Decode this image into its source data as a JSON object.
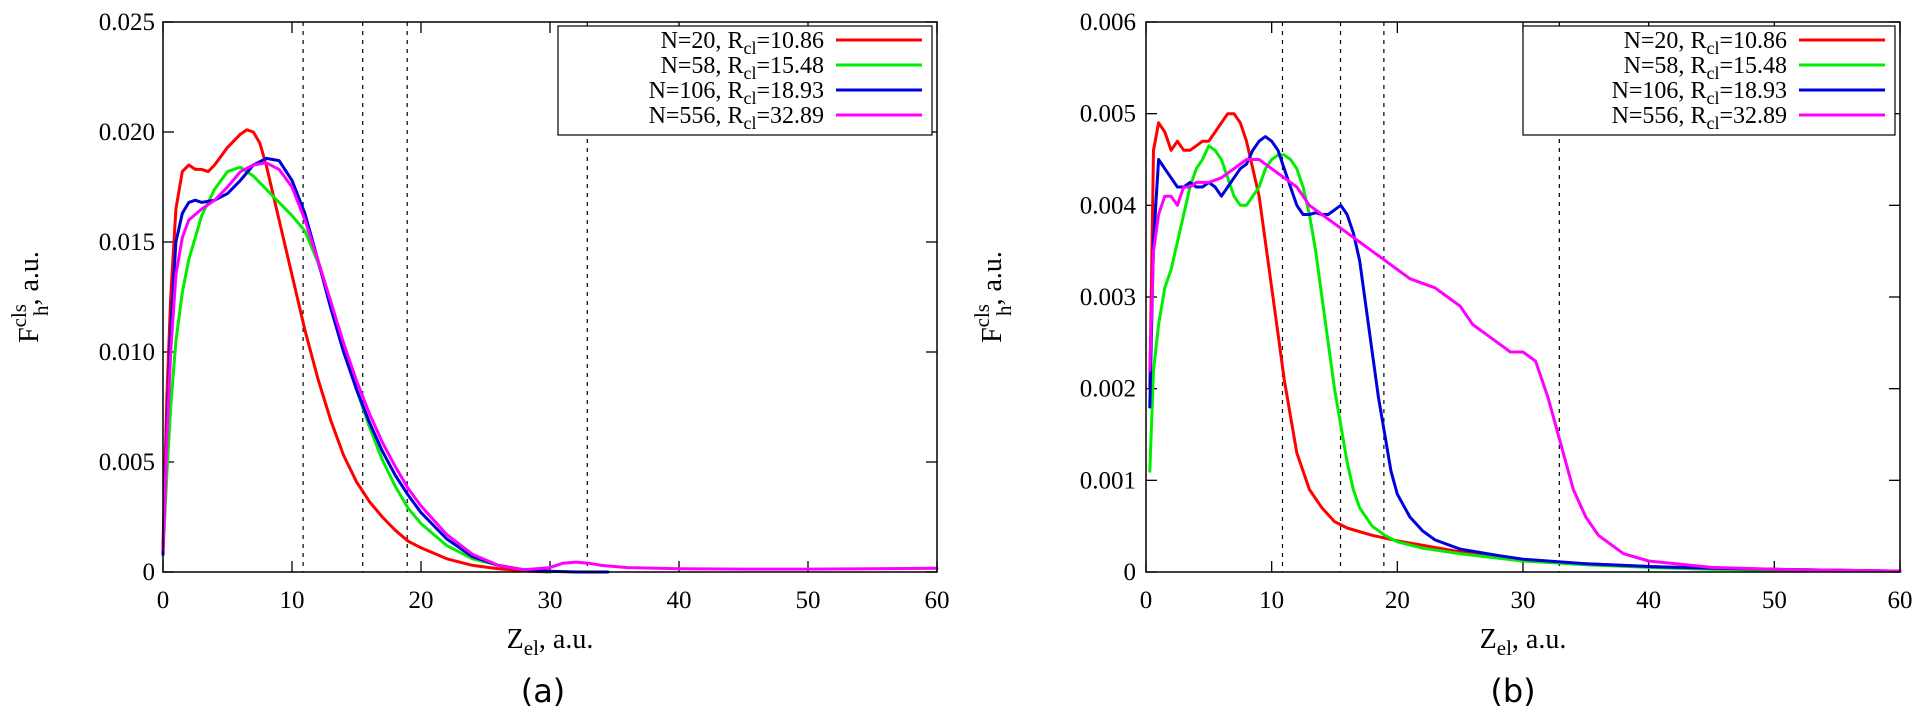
{
  "chart_data": [
    {
      "type": "line",
      "panel_label": "(a)",
      "xlabel": {
        "main": "Z",
        "sub": "el",
        "rest": ", a.u."
      },
      "ylabel": {
        "main": "F",
        "sup": "cls",
        "sub": "h",
        "rest": ", a.u."
      },
      "xlim": [
        0,
        60
      ],
      "ylim": [
        0,
        0.025
      ],
      "xticks": [
        0,
        10,
        20,
        30,
        40,
        50,
        60
      ],
      "xtick_labels": [
        "0",
        "10",
        "20",
        "30",
        "40",
        "50",
        "60"
      ],
      "yticks": [
        0,
        0.005,
        0.01,
        0.015,
        0.02,
        0.025
      ],
      "ytick_labels": [
        "0",
        "0.005",
        "0.010",
        "0.015",
        "0.020",
        "0.025"
      ],
      "vlines": [
        10.86,
        15.48,
        18.93,
        32.89
      ],
      "legend_position": "top-right",
      "series": [
        {
          "name": "N=20",
          "rcl": "R",
          "rcl_sub": "cl",
          "rcl_value": "=10.86",
          "color": "#ff0000",
          "x": [
            0,
            0.3,
            0.6,
            1,
            1.5,
            2,
            2.5,
            3,
            3.5,
            4,
            5,
            6,
            6.5,
            7,
            7.5,
            8,
            9,
            10,
            11,
            12,
            13,
            14,
            15,
            16,
            17,
            18,
            19,
            20,
            22,
            24,
            26,
            28,
            30
          ],
          "y": [
            0.0012,
            0.008,
            0.0125,
            0.0165,
            0.0182,
            0.0185,
            0.0183,
            0.0183,
            0.0182,
            0.0185,
            0.0193,
            0.0199,
            0.0201,
            0.02,
            0.0195,
            0.0185,
            0.016,
            0.0135,
            0.011,
            0.0088,
            0.0069,
            0.0053,
            0.0041,
            0.0032,
            0.0025,
            0.0019,
            0.0014,
            0.0011,
            0.0006,
            0.0003,
            0.00015,
            5e-05,
            0
          ]
        },
        {
          "name": "N=58",
          "rcl": "R",
          "rcl_sub": "cl",
          "rcl_value": "=15.48",
          "color": "#00ee00",
          "x": [
            0,
            0.3,
            0.6,
            1,
            1.5,
            2,
            3,
            4,
            5,
            6,
            7,
            8,
            9,
            10,
            11,
            12,
            13,
            14,
            15,
            16,
            17,
            18,
            19,
            20,
            22,
            24,
            26,
            28,
            30
          ],
          "y": [
            0.0009,
            0.0045,
            0.0075,
            0.0105,
            0.0127,
            0.0142,
            0.0162,
            0.0174,
            0.0182,
            0.0184,
            0.018,
            0.0174,
            0.0168,
            0.0162,
            0.0155,
            0.0141,
            0.0123,
            0.0103,
            0.0083,
            0.0066,
            0.0051,
            0.0039,
            0.0029,
            0.0022,
            0.0012,
            0.0006,
            0.0003,
            0.0001,
            0
          ]
        },
        {
          "name": "N=106",
          "rcl": "R",
          "rcl_sub": "cl",
          "rcl_value": "=18.93",
          "color": "#0000dd",
          "x": [
            0,
            0.3,
            0.6,
            1,
            1.5,
            2,
            2.5,
            3,
            4,
            5,
            6,
            7,
            8,
            9,
            10,
            11,
            12,
            13,
            14,
            15,
            16,
            17,
            18,
            19,
            20,
            22,
            24,
            26,
            28,
            30,
            32,
            34.5
          ],
          "y": [
            0.0008,
            0.0065,
            0.011,
            0.015,
            0.0163,
            0.0168,
            0.0169,
            0.0168,
            0.0169,
            0.0172,
            0.0178,
            0.0185,
            0.0188,
            0.0187,
            0.0178,
            0.0163,
            0.0142,
            0.012,
            0.01,
            0.0083,
            0.0068,
            0.0055,
            0.0044,
            0.0035,
            0.0027,
            0.0015,
            0.0007,
            0.0003,
            0.0001,
            3e-05,
            0,
            0
          ]
        },
        {
          "name": "N=556",
          "rcl": "R",
          "rcl_sub": "cl",
          "rcl_value": "=32.89",
          "color": "#ff00ff",
          "x": [
            0,
            0.3,
            0.6,
            1,
            1.5,
            2,
            3,
            4,
            5,
            6,
            7,
            8,
            9,
            10,
            11,
            12,
            13,
            14,
            15,
            16,
            17,
            18,
            19,
            20,
            22,
            24,
            26,
            28,
            30,
            31,
            32,
            33,
            34,
            36,
            40,
            45,
            50,
            55,
            60
          ],
          "y": [
            0.001,
            0.006,
            0.01,
            0.0135,
            0.0152,
            0.016,
            0.0165,
            0.0169,
            0.0175,
            0.0182,
            0.0185,
            0.0186,
            0.0183,
            0.0175,
            0.016,
            0.0142,
            0.0123,
            0.0104,
            0.0087,
            0.0072,
            0.0059,
            0.0048,
            0.0038,
            0.003,
            0.0017,
            0.0008,
            0.0003,
            0.0001,
            0.0002,
            0.0004,
            0.00045,
            0.0004,
            0.0003,
            0.0002,
            0.00015,
            0.00013,
            0.00013,
            0.00015,
            0.00017
          ]
        }
      ]
    },
    {
      "type": "line",
      "panel_label": "(b)",
      "xlabel": {
        "main": "Z",
        "sub": "el",
        "rest": ", a.u."
      },
      "ylabel": {
        "main": "F",
        "sup": "cls",
        "sub": "h",
        "rest": ", a.u."
      },
      "xlim": [
        0,
        60
      ],
      "ylim": [
        0,
        0.006
      ],
      "xticks": [
        0,
        10,
        20,
        30,
        40,
        50,
        60
      ],
      "xtick_labels": [
        "0",
        "10",
        "20",
        "30",
        "40",
        "50",
        "60"
      ],
      "yticks": [
        0,
        0.001,
        0.002,
        0.003,
        0.004,
        0.005,
        0.006
      ],
      "ytick_labels": [
        "0",
        "0.001",
        "0.002",
        "0.003",
        "0.004",
        "0.005",
        "0.006"
      ],
      "vlines": [
        10.86,
        15.48,
        18.93,
        32.89
      ],
      "legend_position": "top-right",
      "series": [
        {
          "name": "N=20",
          "rcl": "R",
          "rcl_sub": "cl",
          "rcl_value": "=10.86",
          "color": "#ff0000",
          "x": [
            0.3,
            0.6,
            1,
            1.5,
            2,
            2.5,
            3,
            3.5,
            4,
            4.5,
            5,
            5.5,
            6,
            6.5,
            7,
            7.5,
            8,
            8.5,
            9,
            9.5,
            10,
            10.5,
            11,
            11.5,
            12,
            13,
            14,
            15,
            16,
            18,
            20,
            25,
            30,
            35,
            40,
            45,
            50,
            55,
            60
          ],
          "y": [
            0.002,
            0.0046,
            0.0049,
            0.0048,
            0.0046,
            0.0047,
            0.0046,
            0.0046,
            0.00465,
            0.0047,
            0.0047,
            0.0048,
            0.0049,
            0.005,
            0.005,
            0.0049,
            0.0047,
            0.0044,
            0.0041,
            0.0036,
            0.0031,
            0.0026,
            0.0021,
            0.0017,
            0.0013,
            0.0009,
            0.0007,
            0.00055,
            0.00048,
            0.0004,
            0.00034,
            0.00022,
            0.00012,
            9e-05,
            6e-05,
            4e-05,
            3e-05,
            2e-05,
            1e-05
          ]
        },
        {
          "name": "N=58",
          "rcl": "R",
          "rcl_sub": "cl",
          "rcl_value": "=15.48",
          "color": "#00ee00",
          "x": [
            0.3,
            0.6,
            1,
            1.5,
            2,
            2.5,
            3,
            3.5,
            4,
            4.5,
            5,
            5.5,
            6,
            6.5,
            7,
            7.5,
            8,
            8.5,
            9,
            9.5,
            10,
            10.5,
            11,
            11.5,
            12,
            12.5,
            13,
            13.5,
            14,
            14.5,
            15,
            15.5,
            16,
            16.5,
            17,
            18,
            19,
            20,
            22,
            25,
            30,
            35,
            40,
            45,
            50,
            55,
            60
          ],
          "y": [
            0.0011,
            0.0022,
            0.0027,
            0.0031,
            0.0033,
            0.0036,
            0.0039,
            0.0042,
            0.0044,
            0.0045,
            0.00465,
            0.0046,
            0.0045,
            0.0043,
            0.0041,
            0.004,
            0.004,
            0.0041,
            0.0042,
            0.0044,
            0.0045,
            0.00455,
            0.00455,
            0.0045,
            0.0044,
            0.0042,
            0.0039,
            0.0035,
            0.003,
            0.0025,
            0.002,
            0.0016,
            0.0012,
            0.0009,
            0.0007,
            0.0005,
            0.0004,
            0.00033,
            0.00026,
            0.0002,
            0.00012,
            8e-05,
            5e-05,
            3e-05,
            2e-05,
            1e-05,
            1e-05
          ]
        },
        {
          "name": "N=106",
          "rcl": "R",
          "rcl_sub": "cl",
          "rcl_value": "=18.93",
          "color": "#0000dd",
          "x": [
            0.3,
            0.6,
            1,
            1.5,
            2,
            2.5,
            3,
            3.5,
            4,
            4.5,
            5,
            5.5,
            6,
            6.5,
            7,
            7.5,
            8,
            8.5,
            9,
            9.5,
            10,
            10.5,
            11,
            11.5,
            12,
            12.5,
            13,
            13.5,
            14,
            14.5,
            15,
            15.5,
            16,
            16.5,
            17,
            17.5,
            18,
            18.5,
            19,
            19.5,
            20,
            21,
            22,
            23,
            25,
            28,
            30,
            35,
            40,
            45,
            50,
            55,
            60
          ],
          "y": [
            0.0018,
            0.0036,
            0.0045,
            0.0044,
            0.0043,
            0.0042,
            0.0042,
            0.00425,
            0.0042,
            0.0042,
            0.00425,
            0.0042,
            0.0041,
            0.0042,
            0.0043,
            0.0044,
            0.00445,
            0.0046,
            0.0047,
            0.00475,
            0.0047,
            0.0046,
            0.0044,
            0.0042,
            0.004,
            0.0039,
            0.0039,
            0.00392,
            0.0039,
            0.0039,
            0.00395,
            0.004,
            0.0039,
            0.0037,
            0.0034,
            0.0029,
            0.0024,
            0.0019,
            0.0015,
            0.0011,
            0.00085,
            0.0006,
            0.00045,
            0.00035,
            0.00025,
            0.00018,
            0.00014,
            9e-05,
            6e-05,
            4e-05,
            3e-05,
            2e-05,
            1e-05
          ]
        },
        {
          "name": "N=556",
          "rcl": "R",
          "rcl_sub": "cl",
          "rcl_value": "=32.89",
          "color": "#ff00ff",
          "x": [
            0.3,
            0.6,
            1,
            1.5,
            2,
            2.5,
            3,
            3.5,
            4,
            5,
            6,
            7,
            8,
            9,
            10,
            11,
            12,
            13,
            14,
            15,
            16,
            17,
            18,
            19,
            20,
            21,
            22,
            23,
            24,
            25,
            26,
            27,
            28,
            29,
            30,
            31,
            32,
            33,
            34,
            35,
            36,
            38,
            40,
            45,
            50,
            55,
            60
          ],
          "y": [
            0.0022,
            0.0035,
            0.0039,
            0.0041,
            0.0041,
            0.004,
            0.0042,
            0.0042,
            0.00425,
            0.00425,
            0.0043,
            0.0044,
            0.0045,
            0.0045,
            0.0044,
            0.0043,
            0.0042,
            0.004,
            0.0039,
            0.0038,
            0.0037,
            0.0036,
            0.0035,
            0.0034,
            0.0033,
            0.0032,
            0.00315,
            0.0031,
            0.003,
            0.0029,
            0.0027,
            0.0026,
            0.0025,
            0.0024,
            0.0024,
            0.0023,
            0.0019,
            0.0014,
            0.0009,
            0.0006,
            0.0004,
            0.0002,
            0.00012,
            5e-05,
            3e-05,
            2e-05,
            1e-05
          ]
        }
      ]
    }
  ]
}
